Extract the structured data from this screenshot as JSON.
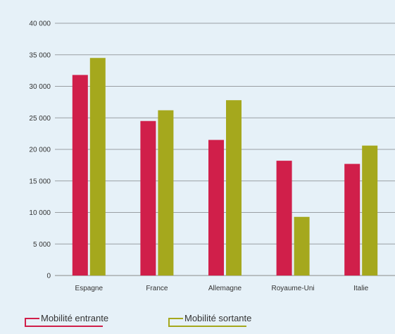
{
  "chart_data": {
    "type": "bar",
    "categories": [
      "Espagne",
      "France",
      "Allemagne",
      "Royaume-Uni",
      "Italie"
    ],
    "series": [
      {
        "name": "Mobilité entrante",
        "color": "#d01f4a",
        "values": [
          31800,
          24500,
          21500,
          18200,
          17700
        ]
      },
      {
        "name": "Mobilité sortante",
        "color": "#a5a81d",
        "values": [
          34500,
          26200,
          27800,
          9300,
          20600
        ]
      }
    ],
    "y_ticks": [
      "0",
      "5 000",
      "10 000",
      "15 000",
      "20 000",
      "25 000",
      "30 000",
      "35 000",
      "40 000"
    ],
    "ylim": [
      0,
      40000
    ],
    "grid": true,
    "legend_position": "bottom-left",
    "title": "",
    "xlabel": "",
    "ylabel": ""
  }
}
